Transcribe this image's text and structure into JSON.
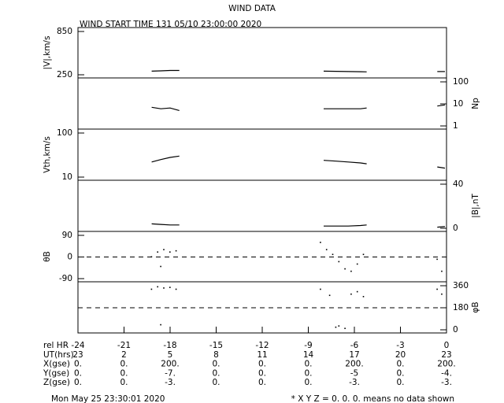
{
  "title": "WIND DATA",
  "subtitle": "WIND START TIME 131 05/10 23:00:00 2020",
  "x_axis": {
    "label": "rel HR",
    "xlim": [
      -24,
      0
    ],
    "xticks": [
      -24,
      -21,
      -18,
      -15,
      -12,
      -9,
      -6,
      -3,
      0
    ]
  },
  "orbit_table": {
    "rows": [
      {
        "label": "UT(hrs)",
        "cells": [
          "23",
          "2",
          "5",
          "8",
          "11",
          "14",
          "17",
          "20",
          "23"
        ]
      },
      {
        "label": "X(gse)",
        "cells": [
          "0.",
          "0.",
          "200.",
          "0.",
          "0.",
          "0.",
          "200.",
          "0.",
          "200."
        ]
      },
      {
        "label": "Y(gse)",
        "cells": [
          "0.",
          "0.",
          "-7.",
          "0.",
          "0.",
          "0.",
          "-5",
          "0.",
          "-4."
        ]
      },
      {
        "label": "Z(gse)",
        "cells": [
          "0.",
          "0.",
          "-3.",
          "0.",
          "0.",
          "0.",
          "-3.",
          "0.",
          "-3."
        ]
      }
    ]
  },
  "footer": {
    "date": "Mon May 25 23:30:01 2020",
    "note": "* X Y Z = 0. 0. 0. means no data shown"
  },
  "chart_data": [
    {
      "type": "line",
      "ylabel": "|V|,km/s",
      "axis_side": "left",
      "log": false,
      "ylim": [
        250,
        850
      ],
      "yticks": [
        250,
        850
      ],
      "color": "#000000",
      "x": [
        -19.2,
        -18.6,
        -18.0,
        -17.4,
        -12,
        -8.0,
        -7.2,
        -6.4,
        -5.6,
        -5.2,
        -2,
        -0.6,
        -0.1
      ],
      "values": [
        300,
        305,
        310,
        310,
        null,
        300,
        298,
        295,
        293,
        290,
        null,
        295,
        295
      ]
    },
    {
      "type": "line",
      "ylabel": "Np",
      "axis_side": "right",
      "log": true,
      "ylim": [
        1,
        100
      ],
      "yticks": [
        1,
        10,
        100
      ],
      "color": "#000000",
      "x": [
        -19.2,
        -18.6,
        -18.0,
        -17.4,
        -12,
        -8.0,
        -7.2,
        -6.4,
        -5.6,
        -5.2,
        -2,
        -0.6,
        -0.1
      ],
      "values": [
        7,
        6,
        6.5,
        5,
        null,
        6,
        6,
        6,
        6,
        6.5,
        null,
        8,
        9
      ]
    },
    {
      "type": "line",
      "ylabel": "Vth,km/s",
      "axis_side": "left",
      "log": true,
      "ylim": [
        10,
        100
      ],
      "yticks": [
        10,
        100
      ],
      "color": "#000000",
      "x": [
        -19.2,
        -18.6,
        -18.0,
        -17.4,
        -12,
        -8.0,
        -7.2,
        -6.4,
        -5.6,
        -5.2,
        -2,
        -0.6,
        -0.1
      ],
      "values": [
        22,
        25,
        28,
        30,
        null,
        24,
        23,
        22,
        21,
        20,
        null,
        17,
        16
      ]
    },
    {
      "type": "line",
      "ylabel": "|B|,nT",
      "axis_side": "right",
      "log": false,
      "ylim": [
        0,
        40
      ],
      "yticks": [
        0,
        40
      ],
      "color": "#000000",
      "x": [
        -19.2,
        -18.6,
        -18.0,
        -17.4,
        -12,
        -8.0,
        -7.2,
        -6.4,
        -5.6,
        -5.2,
        -2,
        -0.6,
        -0.1
      ],
      "values": [
        4,
        3.5,
        3,
        3,
        null,
        2,
        2,
        2,
        2.5,
        3,
        null,
        1,
        1.5
      ]
    },
    {
      "type": "scatter",
      "ylabel": "θB",
      "axis_side": "left",
      "log": false,
      "ylim": [
        -90,
        90
      ],
      "yticks": [
        -90,
        0,
        90
      ],
      "reference_line": 0,
      "color": "#000000",
      "x": [
        -19.2,
        -18.8,
        -18.4,
        -18.0,
        -17.6,
        -18.6,
        -8.2,
        -7.8,
        -7.4,
        -7.0,
        -6.6,
        -6.2,
        -5.8,
        -5.4,
        -0.6,
        -0.3
      ],
      "values": [
        0,
        20,
        30,
        20,
        25,
        -40,
        60,
        30,
        10,
        -20,
        -50,
        -60,
        -30,
        10,
        -10,
        -60
      ]
    },
    {
      "type": "scatter",
      "ylabel": "φB",
      "axis_side": "right",
      "log": false,
      "ylim": [
        0,
        360
      ],
      "yticks": [
        0,
        180,
        360
      ],
      "reference_line": 180,
      "color": "#000000",
      "x": [
        -19.2,
        -18.8,
        -18.4,
        -18.0,
        -17.6,
        -18.6,
        -8.2,
        -7.6,
        -7.2,
        -7.0,
        -6.6,
        -6.2,
        -5.8,
        -5.4,
        -0.6,
        -0.3
      ],
      "values": [
        330,
        350,
        340,
        345,
        330,
        40,
        330,
        280,
        20,
        30,
        10,
        290,
        310,
        270,
        330,
        290
      ]
    }
  ]
}
